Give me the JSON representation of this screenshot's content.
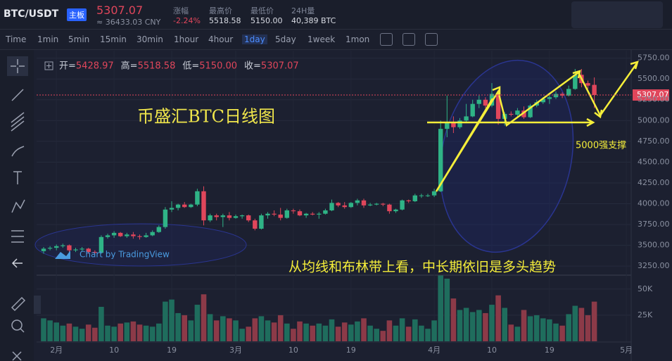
{
  "header": {
    "symbol": "BTC/USDT",
    "board": "主板",
    "price": "5307.07",
    "cny": "≈ 36433.03 CNY",
    "stats": [
      {
        "label": "涨幅",
        "value": "-2.24%"
      },
      {
        "label": "最高价",
        "value": "5518.58"
      },
      {
        "label": "最低价",
        "value": "5150.00"
      },
      {
        "label": "24H量",
        "value": "40,389 BTC"
      }
    ]
  },
  "toolbar": {
    "intervals": [
      "Time",
      "1min",
      "5min",
      "15min",
      "30min",
      "1hour",
      "4hour",
      "1day",
      "5day",
      "1week",
      "1mon"
    ],
    "active_index": 7
  },
  "chart_data": {
    "type": "candlestick",
    "title": "币盛汇BTC日线图",
    "annotations": [
      "5000强支撑",
      "从均线和布林带上看，中长期依旧是多头趋势"
    ],
    "credit": "Chart by TradingView",
    "ohlc_legend": [
      {
        "label": "开=",
        "value": "5428.97"
      },
      {
        "label": "高=",
        "value": "5518.58"
      },
      {
        "label": "低=",
        "value": "5150.00"
      },
      {
        "label": "收=",
        "value": "5307.07"
      }
    ],
    "last_price_label": "5307.07",
    "categories": [
      null,
      null,
      "2月",
      null,
      null,
      null,
      null,
      null,
      null,
      null,
      null,
      "10",
      null,
      null,
      null,
      null,
      null,
      null,
      null,
      null,
      "19",
      null,
      null,
      null,
      null,
      null,
      null,
      null,
      null,
      null,
      "3月",
      null,
      null,
      null,
      null,
      null,
      null,
      null,
      null,
      "10",
      null,
      null,
      null,
      null,
      null,
      null,
      null,
      null,
      "19",
      null,
      null,
      null,
      null,
      null,
      null,
      null,
      null,
      null,
      null,
      null,
      null,
      "4月",
      null,
      null,
      null,
      null,
      null,
      null,
      null,
      null,
      "10",
      null,
      null,
      null,
      null,
      null,
      null,
      null,
      null,
      "19",
      null,
      null,
      null,
      null,
      null,
      null,
      null,
      null,
      null,
      null,
      null,
      "5月"
    ],
    "open": [
      3430,
      3460,
      3470,
      3490,
      3500,
      3440,
      3450,
      3460,
      3420,
      3410,
      3600,
      3620,
      3650,
      3610,
      3630,
      3610,
      3600,
      3620,
      3660,
      3720,
      3930,
      3950,
      3990,
      3960,
      3990,
      4150,
      3800,
      3860,
      3840,
      3860,
      3830,
      3850,
      3860,
      3800,
      3700,
      3860,
      3880,
      3870,
      3830,
      3920,
      3910,
      3860,
      3880,
      3870,
      3880,
      3920,
      4010,
      3980,
      3960,
      4010,
      4040,
      3980,
      3990,
      4000,
      3990,
      3910,
      3930,
      4040,
      4030,
      4100,
      4100,
      4100,
      4150,
      4900,
      4970,
      4920,
      5000,
      5050,
      5200,
      5250,
      5180,
      5320,
      5020,
      5080,
      5070,
      5120,
      5040,
      5180,
      5220,
      5260,
      5280,
      5320,
      5300,
      5380,
      5550,
      5450,
      5428.97,
      null,
      null,
      null,
      null,
      null
    ],
    "high": [
      3480,
      3490,
      3510,
      3520,
      3510,
      3470,
      3480,
      3470,
      3440,
      3620,
      3640,
      3670,
      3660,
      3650,
      3660,
      3630,
      3650,
      3680,
      3740,
      3960,
      4030,
      4000,
      4020,
      4000,
      4180,
      4210,
      3880,
      3880,
      3880,
      3900,
      3870,
      3870,
      3870,
      3820,
      3880,
      3900,
      3920,
      3950,
      3940,
      3940,
      3930,
      3890,
      3900,
      3900,
      3940,
      4050,
      4020,
      4020,
      4020,
      4060,
      4060,
      4010,
      4010,
      4010,
      4000,
      3940,
      4050,
      4050,
      4120,
      4120,
      4120,
      4180,
      5000,
      5300,
      5050,
      5030,
      5200,
      5250,
      5300,
      5280,
      5450,
      5340,
      5100,
      5110,
      5150,
      5170,
      5200,
      5250,
      5280,
      5300,
      5350,
      5340,
      5420,
      5620,
      5620,
      5480,
      5518.58,
      null,
      null,
      null,
      null,
      null
    ],
    "low": [
      3400,
      3440,
      3440,
      3470,
      3420,
      3420,
      3430,
      3400,
      3390,
      3400,
      3580,
      3590,
      3600,
      3590,
      3580,
      3570,
      3590,
      3610,
      3650,
      3700,
      3900,
      3920,
      3950,
      3950,
      3970,
      3740,
      3780,
      3800,
      3720,
      3800,
      3820,
      3820,
      3780,
      3680,
      3690,
      3820,
      3850,
      3800,
      3820,
      3880,
      3850,
      3830,
      3860,
      3820,
      3870,
      3910,
      3960,
      3940,
      3950,
      3980,
      3950,
      3970,
      3980,
      3970,
      3880,
      3890,
      3920,
      4010,
      4020,
      4070,
      4080,
      4080,
      4140,
      4800,
      4850,
      4900,
      4980,
      5040,
      5150,
      5150,
      5160,
      4950,
      4940,
      5050,
      5040,
      5020,
      5030,
      5160,
      5200,
      5200,
      5260,
      5270,
      5290,
      5370,
      5400,
      5380,
      5150,
      null,
      null,
      null,
      null,
      null
    ],
    "close": [
      3460,
      3470,
      3490,
      3500,
      3440,
      3450,
      3460,
      3420,
      3410,
      3600,
      3620,
      3650,
      3610,
      3630,
      3610,
      3600,
      3620,
      3660,
      3720,
      3930,
      3950,
      3990,
      3960,
      3990,
      4150,
      3800,
      3860,
      3840,
      3860,
      3830,
      3850,
      3860,
      3800,
      3700,
      3860,
      3880,
      3870,
      3830,
      3920,
      3910,
      3860,
      3880,
      3870,
      3880,
      3920,
      4010,
      3980,
      3960,
      4010,
      4040,
      3980,
      3990,
      4000,
      3990,
      3910,
      3930,
      4040,
      4030,
      4100,
      4100,
      4100,
      4150,
      4900,
      4970,
      4920,
      5000,
      5050,
      5200,
      5250,
      5180,
      5320,
      5020,
      5080,
      5070,
      5120,
      5040,
      5180,
      5220,
      5260,
      5280,
      5320,
      5300,
      5380,
      5550,
      5450,
      5420,
      5307.07,
      null,
      null,
      null,
      null,
      null
    ],
    "volume": [
      22000,
      20000,
      18000,
      15000,
      17000,
      14000,
      12000,
      16000,
      13000,
      33000,
      15000,
      14000,
      17000,
      18000,
      19000,
      16000,
      15000,
      14000,
      17000,
      38000,
      40000,
      27000,
      25000,
      20000,
      35000,
      45000,
      26000,
      20000,
      24000,
      22000,
      20000,
      12000,
      14000,
      22000,
      24000,
      20000,
      18000,
      25000,
      17000,
      12000,
      19000,
      17000,
      15000,
      17000,
      15000,
      21000,
      14000,
      18000,
      16000,
      19000,
      22000,
      15000,
      12000,
      10000,
      20000,
      15000,
      22000,
      14000,
      21000,
      15000,
      12000,
      20000,
      63000,
      60000,
      41000,
      30000,
      32000,
      28000,
      30000,
      27000,
      35000,
      44000,
      32000,
      16000,
      14000,
      30000,
      24000,
      25000,
      22000,
      21000,
      17000,
      15000,
      26000,
      34000,
      32000,
      25000,
      38000,
      null,
      null,
      null,
      null,
      null
    ],
    "up_color": "#2fb386",
    "down_color": "#e0465b",
    "up_volume_color": "#1f6d5d",
    "down_volume_color": "#8c3a48",
    "ylim": [
      3150,
      5840
    ],
    "yticks": [
      {
        "value": 3250,
        "label": "3250.00"
      },
      {
        "value": 3500,
        "label": "3500.00"
      },
      {
        "value": 3750,
        "label": "3750.00"
      },
      {
        "value": 4000,
        "label": "4000.00"
      },
      {
        "value": 4250,
        "label": "4250.00"
      },
      {
        "value": 4500,
        "label": "4500.00"
      },
      {
        "value": 4750,
        "label": "4750.00"
      },
      {
        "value": 5000,
        "label": "5000.00"
      },
      {
        "value": 5250,
        "label": "5250.00"
      },
      {
        "value": 5500,
        "label": "5500.00"
      },
      {
        "value": 5750,
        "label": "5750.00"
      }
    ],
    "volume_ylim": [
      0,
      62000
    ],
    "volume_yticks": [
      {
        "value": 25000,
        "label": "25K"
      },
      {
        "value": 50000,
        "label": "50K"
      }
    ],
    "grid": true
  }
}
